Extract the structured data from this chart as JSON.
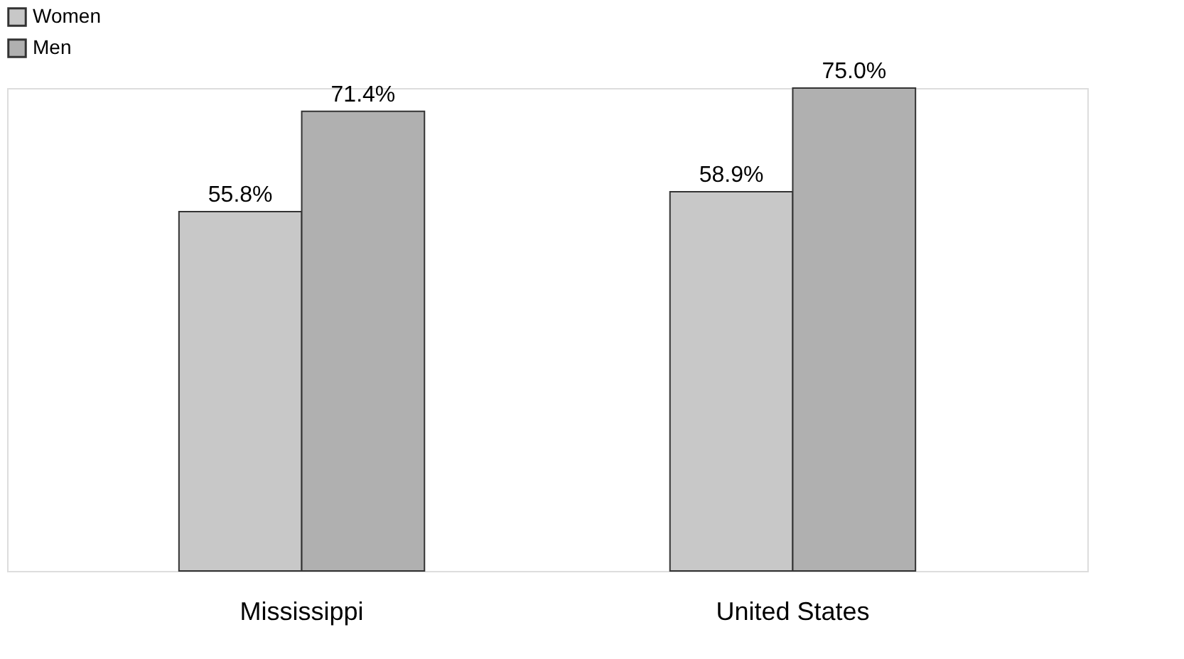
{
  "chart_data": {
    "type": "bar",
    "categories": [
      "Mississippi",
      "United States"
    ],
    "series": [
      {
        "name": "Women",
        "color": "#c8c8c8",
        "values": [
          55.8,
          58.9
        ],
        "value_labels": [
          "55.8%",
          "58.9%"
        ]
      },
      {
        "name": "Men",
        "color": "#b0b0b0",
        "values": [
          71.4,
          75.0
        ],
        "value_labels": [
          "71.4%",
          "75.0%"
        ]
      }
    ],
    "legend": "top",
    "grid": false
  }
}
